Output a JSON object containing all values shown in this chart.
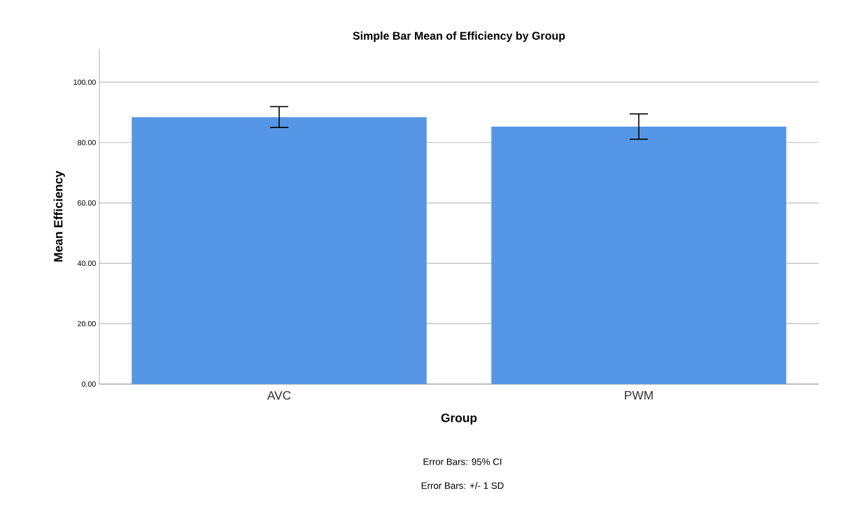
{
  "chart_data": {
    "type": "bar",
    "title": "Simple Bar Mean of Efficiency by Group",
    "xlabel": "Group",
    "ylabel": "Mean Efficiency",
    "categories": [
      "AVC",
      "PWM"
    ],
    "values": [
      88.4,
      85.3
    ],
    "errors": [
      [
        85.0,
        91.9
      ],
      [
        81.1,
        89.5
      ]
    ],
    "color": "#5596e6",
    "ylim": [
      0,
      111
    ],
    "yticks": [
      {
        "value": 0,
        "label": "0.00"
      },
      {
        "value": 20,
        "label": "20.00"
      },
      {
        "value": 40,
        "label": "40.00"
      },
      {
        "value": 60,
        "label": "60.00"
      },
      {
        "value": 80,
        "label": "80.00"
      },
      {
        "value": 100,
        "label": "100.00"
      }
    ],
    "grid": "y",
    "annotations": [
      "Error Bars: 95% CI",
      "Error Bars: +/- 1 SD"
    ]
  }
}
